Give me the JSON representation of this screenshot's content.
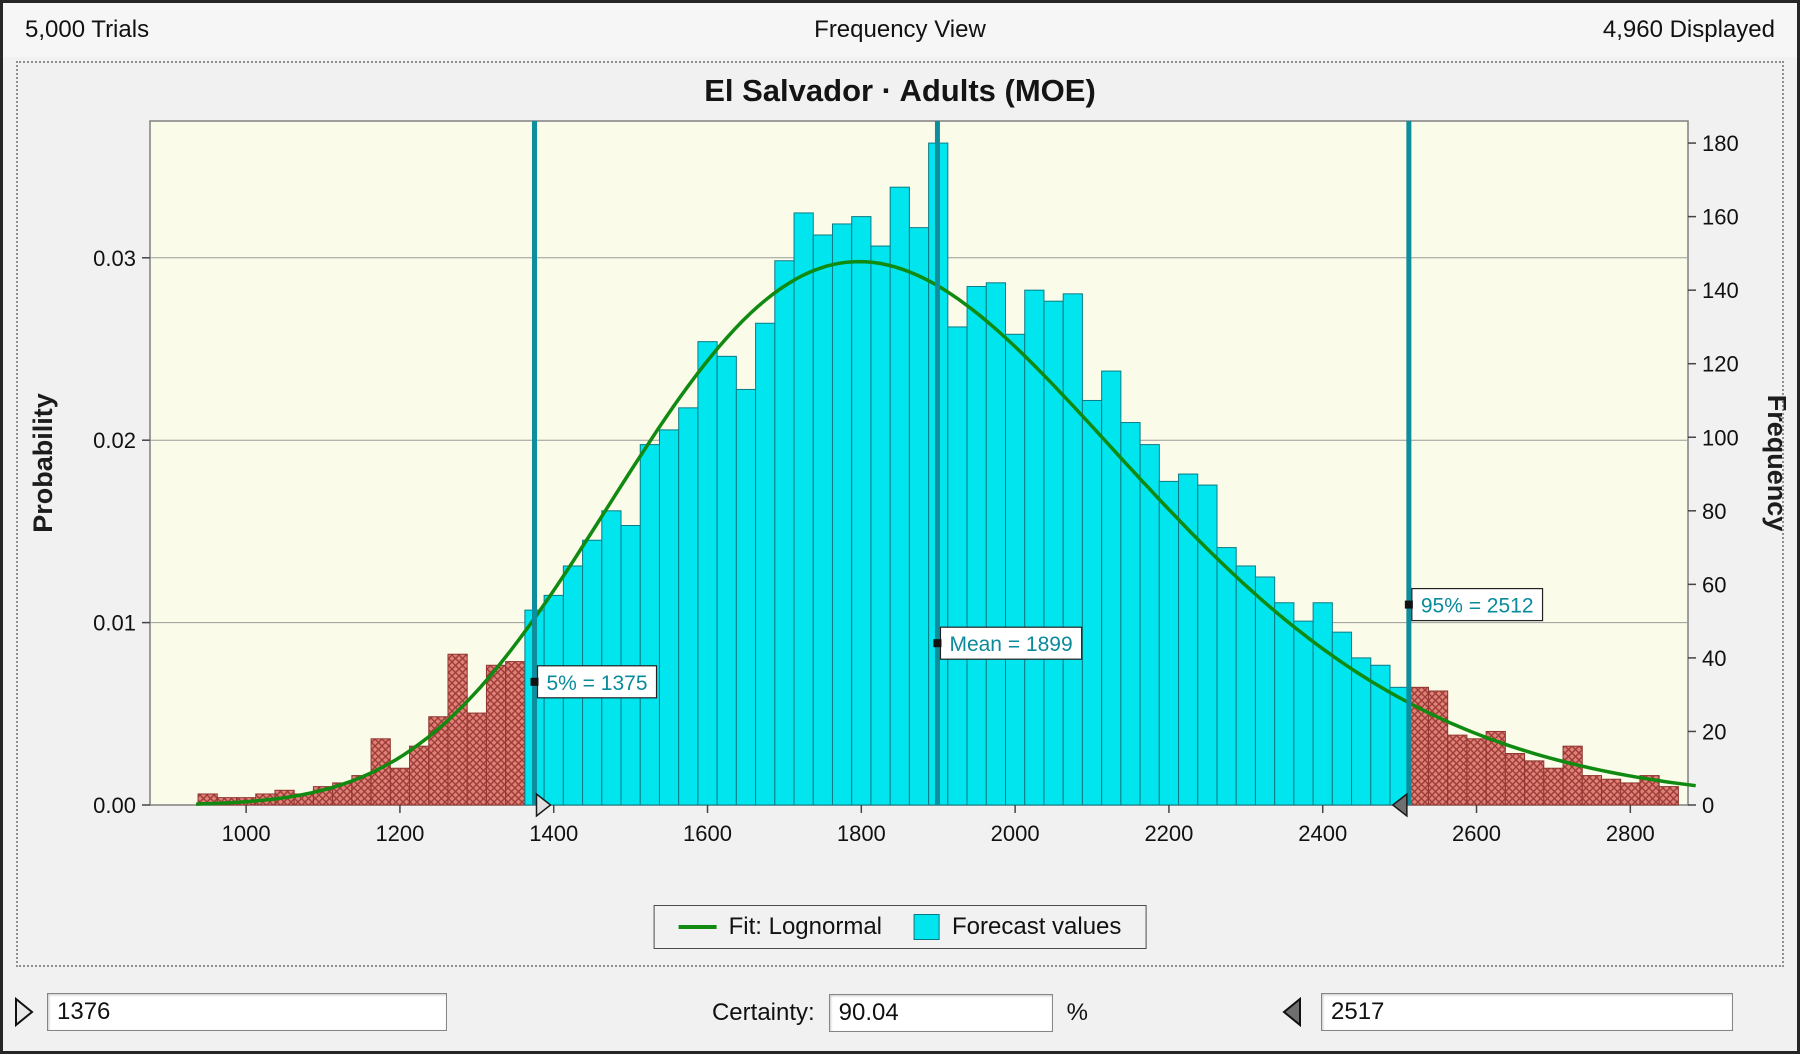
{
  "window": {
    "header": {
      "trials": "5,000 Trials",
      "view_title": "Frequency View",
      "displayed": "4,960 Displayed"
    },
    "legend": {
      "fit_label": "Fit: Lognormal",
      "values_label": "Forecast values"
    },
    "controls": {
      "left_grabber_value": "1376",
      "certainty_label": "Certainty:",
      "certainty_value": "90.04",
      "percent_sign": "%",
      "right_grabber_value": "2517"
    }
  },
  "chart_data": {
    "type": "bar",
    "subtype": "histogram-with-fit",
    "title": "El Salvador · Adults (MOE)",
    "xlabel": "",
    "ylabel_left": "Probability",
    "ylabel_right": "Frequency",
    "x_ticks": [
      1000,
      1200,
      1400,
      1600,
      1800,
      2000,
      2200,
      2400,
      2600,
      2800
    ],
    "left_axis_ticks": [
      "0.00",
      "0.01",
      "0.02",
      "0.03"
    ],
    "right_axis_ticks": [
      0,
      20,
      40,
      60,
      80,
      100,
      120,
      140,
      160,
      180
    ],
    "x_domain": [
      875,
      2875
    ],
    "freq_axis_max": 186,
    "grid": "horizontal",
    "legend_position": "bottom-center",
    "total_displayed": 4960,
    "total_trials": 5000,
    "bin_start": 950,
    "bin_width": 25,
    "counts": [
      3,
      2,
      2,
      3,
      4,
      3,
      5,
      6,
      8,
      18,
      10,
      16,
      24,
      41,
      25,
      38,
      39,
      53,
      57,
      65,
      72,
      80,
      76,
      98,
      102,
      108,
      126,
      122,
      113,
      131,
      148,
      161,
      155,
      158,
      160,
      152,
      168,
      157,
      180,
      130,
      141,
      142,
      128,
      140,
      137,
      139,
      110,
      118,
      104,
      98,
      88,
      90,
      87,
      70,
      65,
      62,
      55,
      50,
      55,
      47,
      40,
      38,
      32,
      32,
      31,
      19,
      18,
      20,
      14,
      12,
      10,
      16,
      8,
      7,
      6,
      8,
      5
    ],
    "fit": {
      "type": "Lognormal",
      "p5": 1375,
      "p95": 2512,
      "mean": 1899
    },
    "markers": [
      {
        "id": "p5",
        "label": "5% = 1375",
        "value": 1375,
        "label_anchor_freq": 33.5,
        "grabber": "right"
      },
      {
        "id": "mean",
        "label": "Mean = 1899",
        "value": 1899,
        "label_anchor_freq": 44
      },
      {
        "id": "p95",
        "label": "95% = 2512",
        "value": 2512,
        "label_anchor_freq": 54.5,
        "grabber": "left"
      }
    ],
    "colors": {
      "plot_bg": "#FBFBE9",
      "forecast_bars": "#00E5EE",
      "forecast_stroke": "#0A7B84",
      "outside_bars": "#DE8279",
      "outside_hatch": "#9E3B36",
      "outside_stroke": "#8F3530",
      "fit_curve": "#108A10",
      "marker_lines": "#0E8E9C",
      "marker_text": "#0A8A9A",
      "grid_line": "#9a9a9a"
    }
  }
}
